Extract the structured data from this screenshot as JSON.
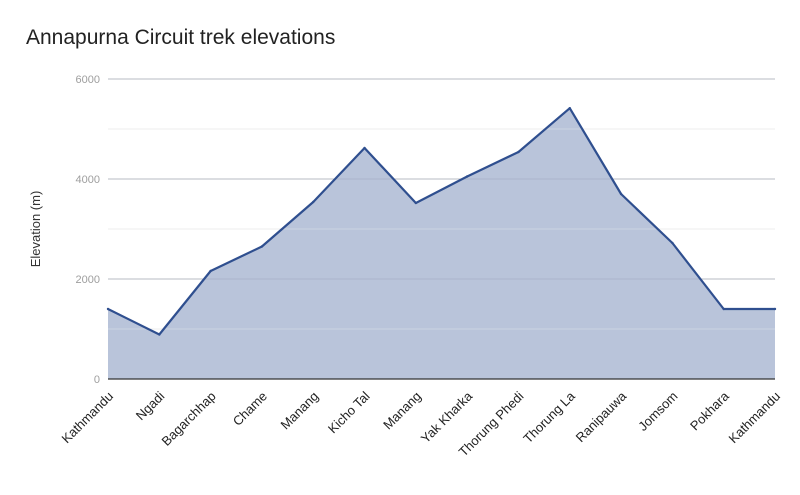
{
  "chart_data": {
    "type": "area",
    "title": "Annapurna Circuit trek elevations",
    "xlabel": "",
    "ylabel": "Elevation (m)",
    "ylim": [
      0,
      6000
    ],
    "yticks": [
      0,
      2000,
      4000,
      6000
    ],
    "grid": true,
    "legend": "none",
    "categories": [
      "Kathmandu",
      "Ngadi",
      "Bagarchhap",
      "Chame",
      "Manang",
      "Kicho Tal",
      "Manang",
      "Yak Kharka",
      "Thorung Phedi",
      "Thorung La",
      "Ranipauwa",
      "Jomsom",
      "Pokhara",
      "Kathmandu"
    ],
    "series": [
      {
        "values": [
          1400,
          890,
          2160,
          2650,
          3540,
          4620,
          3520,
          4050,
          4540,
          5416,
          3700,
          2720,
          1400,
          1400
        ]
      }
    ],
    "colors": {
      "line": "#2f4f8f",
      "fill": "#b9c4da",
      "grid_major": "#cccccc",
      "grid_minor": "#e6e6e6",
      "baseline": "#333333"
    }
  }
}
